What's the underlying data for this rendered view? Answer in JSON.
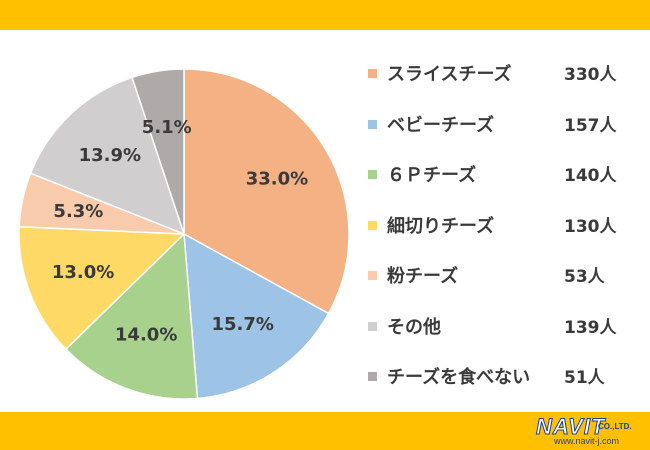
{
  "chart_data": {
    "type": "pie",
    "start_angle_deg": 0,
    "direction": "clockwise",
    "slices": [
      {
        "label": "スライスチーズ",
        "percent": 33.0,
        "percent_label": "33.0%",
        "count": "330人",
        "color": "#f4b183"
      },
      {
        "label": "ベビーチーズ",
        "percent": 15.7,
        "percent_label": "15.7%",
        "count": "157人",
        "color": "#9dc3e6"
      },
      {
        "label": "６Ｐチーズ",
        "percent": 14.0,
        "percent_label": "14.0%",
        "count": "140人",
        "color": "#a9d18e"
      },
      {
        "label": "細切りチーズ",
        "percent": 13.0,
        "percent_label": "13.0%",
        "count": "130人",
        "color": "#ffd966"
      },
      {
        "label": "粉チーズ",
        "percent": 5.3,
        "percent_label": "5.3%",
        "count": "53人",
        "color": "#f8cbad"
      },
      {
        "label": "その他",
        "percent": 13.9,
        "percent_label": "13.9%",
        "count": "139人",
        "color": "#d0cece"
      },
      {
        "label": "チーズを食べない",
        "percent": 5.1,
        "percent_label": "5.1%",
        "count": "51人",
        "color": "#aeaaaa"
      }
    ]
  },
  "colors": {
    "band": "#ffc000",
    "logo_blue": "#1f3f8f"
  },
  "logo": {
    "name": "NAVIT",
    "suffix": "CO.,LTD.",
    "url": "www.navit-j.com"
  }
}
